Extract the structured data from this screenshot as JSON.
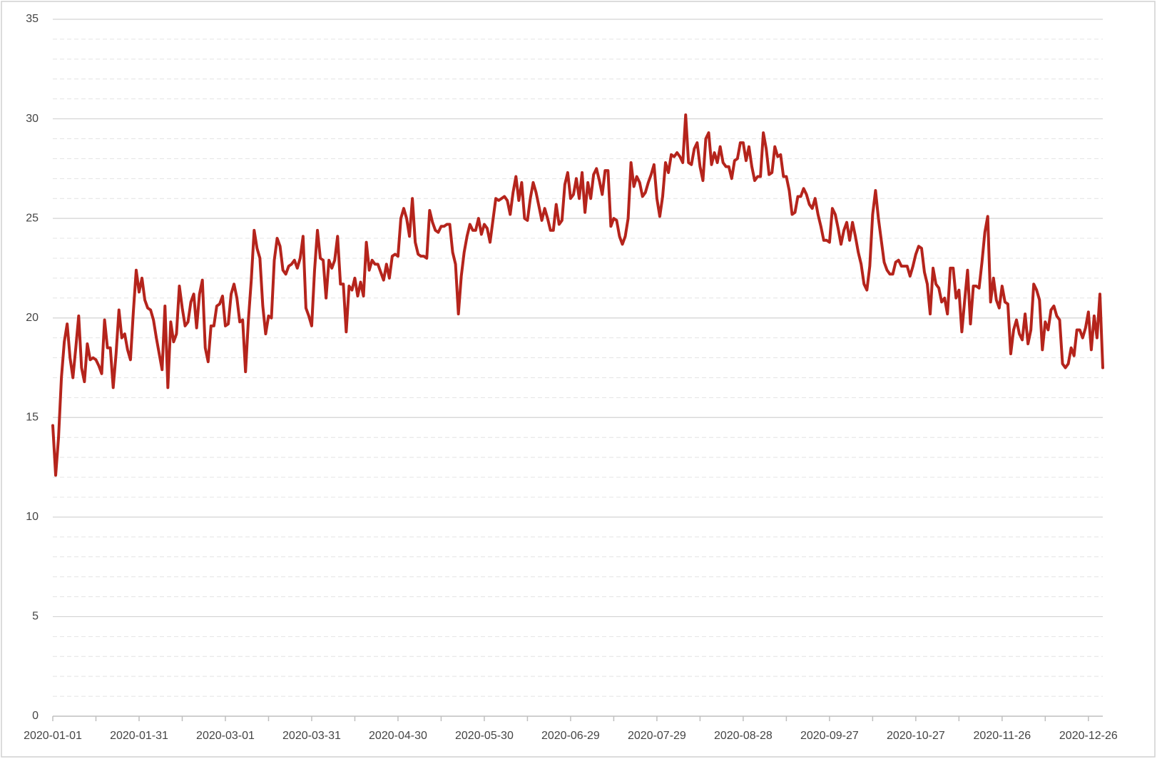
{
  "chart_data": {
    "type": "line",
    "x": [
      "2020-01-01",
      "2020-01-02",
      "2020-01-03",
      "2020-01-04",
      "2020-01-05",
      "2020-01-06",
      "2020-01-07",
      "2020-01-08",
      "2020-01-09",
      "2020-01-10",
      "2020-01-11",
      "2020-01-12",
      "2020-01-13",
      "2020-01-14",
      "2020-01-15",
      "2020-01-16",
      "2020-01-17",
      "2020-01-18",
      "2020-01-19",
      "2020-01-20",
      "2020-01-21",
      "2020-01-22",
      "2020-01-23",
      "2020-01-24",
      "2020-01-25",
      "2020-01-26",
      "2020-01-27",
      "2020-01-28",
      "2020-01-29",
      "2020-01-30",
      "2020-01-31",
      "2020-02-01",
      "2020-02-02",
      "2020-02-03",
      "2020-02-04",
      "2020-02-05",
      "2020-02-06",
      "2020-02-07",
      "2020-02-08",
      "2020-02-09",
      "2020-02-10",
      "2020-02-11",
      "2020-02-12",
      "2020-02-13",
      "2020-02-14",
      "2020-02-15",
      "2020-02-16",
      "2020-02-17",
      "2020-02-18",
      "2020-02-19",
      "2020-02-20",
      "2020-02-21",
      "2020-02-22",
      "2020-02-23",
      "2020-02-24",
      "2020-02-25",
      "2020-02-26",
      "2020-02-27",
      "2020-02-28",
      "2020-02-29",
      "2020-03-01",
      "2020-03-02",
      "2020-03-03",
      "2020-03-04",
      "2020-03-05",
      "2020-03-06",
      "2020-03-07",
      "2020-03-08",
      "2020-03-09",
      "2020-03-10",
      "2020-03-11",
      "2020-03-12",
      "2020-03-13",
      "2020-03-14",
      "2020-03-15",
      "2020-03-16",
      "2020-03-17",
      "2020-03-18",
      "2020-03-19",
      "2020-03-20",
      "2020-03-21",
      "2020-03-22",
      "2020-03-23",
      "2020-03-24",
      "2020-03-25",
      "2020-03-26",
      "2020-03-27",
      "2020-03-28",
      "2020-03-29",
      "2020-03-30",
      "2020-03-31",
      "2020-04-01",
      "2020-04-02",
      "2020-04-03",
      "2020-04-04",
      "2020-04-05",
      "2020-04-06",
      "2020-04-07",
      "2020-04-08",
      "2020-04-09",
      "2020-04-10",
      "2020-04-11",
      "2020-04-12",
      "2020-04-13",
      "2020-04-14",
      "2020-04-15",
      "2020-04-16",
      "2020-04-17",
      "2020-04-18",
      "2020-04-19",
      "2020-04-20",
      "2020-04-21",
      "2020-04-22",
      "2020-04-23",
      "2020-04-24",
      "2020-04-25",
      "2020-04-26",
      "2020-04-27",
      "2020-04-28",
      "2020-04-29",
      "2020-04-30",
      "2020-05-01",
      "2020-05-02",
      "2020-05-03",
      "2020-05-04",
      "2020-05-05",
      "2020-05-06",
      "2020-05-07",
      "2020-05-08",
      "2020-05-09",
      "2020-05-10",
      "2020-05-11",
      "2020-05-12",
      "2020-05-13",
      "2020-05-14",
      "2020-05-15",
      "2020-05-16",
      "2020-05-17",
      "2020-05-18",
      "2020-05-19",
      "2020-05-20",
      "2020-05-21",
      "2020-05-22",
      "2020-05-23",
      "2020-05-24",
      "2020-05-25",
      "2020-05-26",
      "2020-05-27",
      "2020-05-28",
      "2020-05-29",
      "2020-05-30",
      "2020-05-31",
      "2020-06-01",
      "2020-06-02",
      "2020-06-03",
      "2020-06-04",
      "2020-06-05",
      "2020-06-06",
      "2020-06-07",
      "2020-06-08",
      "2020-06-09",
      "2020-06-10",
      "2020-06-11",
      "2020-06-12",
      "2020-06-13",
      "2020-06-14",
      "2020-06-15",
      "2020-06-16",
      "2020-06-17",
      "2020-06-18",
      "2020-06-19",
      "2020-06-20",
      "2020-06-21",
      "2020-06-22",
      "2020-06-23",
      "2020-06-24",
      "2020-06-25",
      "2020-06-26",
      "2020-06-27",
      "2020-06-28",
      "2020-06-29",
      "2020-06-30",
      "2020-07-01",
      "2020-07-02",
      "2020-07-03",
      "2020-07-04",
      "2020-07-05",
      "2020-07-06",
      "2020-07-07",
      "2020-07-08",
      "2020-07-09",
      "2020-07-10",
      "2020-07-11",
      "2020-07-12",
      "2020-07-13",
      "2020-07-14",
      "2020-07-15",
      "2020-07-16",
      "2020-07-17",
      "2020-07-18",
      "2020-07-19",
      "2020-07-20",
      "2020-07-21",
      "2020-07-22",
      "2020-07-23",
      "2020-07-24",
      "2020-07-25",
      "2020-07-26",
      "2020-07-27",
      "2020-07-28",
      "2020-07-29",
      "2020-07-30",
      "2020-07-31",
      "2020-08-01",
      "2020-08-02",
      "2020-08-03",
      "2020-08-04",
      "2020-08-05",
      "2020-08-06",
      "2020-08-07",
      "2020-08-08",
      "2020-08-09",
      "2020-08-10",
      "2020-08-11",
      "2020-08-12",
      "2020-08-13",
      "2020-08-14",
      "2020-08-15",
      "2020-08-16",
      "2020-08-17",
      "2020-08-18",
      "2020-08-19",
      "2020-08-20",
      "2020-08-21",
      "2020-08-22",
      "2020-08-23",
      "2020-08-24",
      "2020-08-25",
      "2020-08-26",
      "2020-08-27",
      "2020-08-28",
      "2020-08-29",
      "2020-08-30",
      "2020-08-31",
      "2020-09-01",
      "2020-09-02",
      "2020-09-03",
      "2020-09-04",
      "2020-09-05",
      "2020-09-06",
      "2020-09-07",
      "2020-09-08",
      "2020-09-09",
      "2020-09-10",
      "2020-09-11",
      "2020-09-12",
      "2020-09-13",
      "2020-09-14",
      "2020-09-15",
      "2020-09-16",
      "2020-09-17",
      "2020-09-18",
      "2020-09-19",
      "2020-09-20",
      "2020-09-21",
      "2020-09-22",
      "2020-09-23",
      "2020-09-24",
      "2020-09-25",
      "2020-09-26",
      "2020-09-27",
      "2020-09-28",
      "2020-09-29",
      "2020-09-30",
      "2020-10-01",
      "2020-10-02",
      "2020-10-03",
      "2020-10-04",
      "2020-10-05",
      "2020-10-06",
      "2020-10-07",
      "2020-10-08",
      "2020-10-09",
      "2020-10-10",
      "2020-10-11",
      "2020-10-12",
      "2020-10-13",
      "2020-10-14",
      "2020-10-15",
      "2020-10-16",
      "2020-10-17",
      "2020-10-18",
      "2020-10-19",
      "2020-10-20",
      "2020-10-21",
      "2020-10-22",
      "2020-10-23",
      "2020-10-24",
      "2020-10-25",
      "2020-10-26",
      "2020-10-27",
      "2020-10-28",
      "2020-10-29",
      "2020-10-30",
      "2020-10-31",
      "2020-11-01",
      "2020-11-02",
      "2020-11-03",
      "2020-11-04",
      "2020-11-05",
      "2020-11-06",
      "2020-11-07",
      "2020-11-08",
      "2020-11-09",
      "2020-11-10",
      "2020-11-11",
      "2020-11-12",
      "2020-11-13",
      "2020-11-14",
      "2020-11-15",
      "2020-11-16",
      "2020-11-17",
      "2020-11-18",
      "2020-11-19",
      "2020-11-20",
      "2020-11-21",
      "2020-11-22",
      "2020-11-23",
      "2020-11-24",
      "2020-11-25",
      "2020-11-26",
      "2020-11-27",
      "2020-11-28",
      "2020-11-29",
      "2020-11-30",
      "2020-12-01",
      "2020-12-02",
      "2020-12-03",
      "2020-12-04",
      "2020-12-05",
      "2020-12-06",
      "2020-12-07",
      "2020-12-08",
      "2020-12-09",
      "2020-12-10",
      "2020-12-11",
      "2020-12-12",
      "2020-12-13",
      "2020-12-14",
      "2020-12-15",
      "2020-12-16",
      "2020-12-17",
      "2020-12-18",
      "2020-12-19",
      "2020-12-20",
      "2020-12-21",
      "2020-12-22",
      "2020-12-23",
      "2020-12-24",
      "2020-12-25",
      "2020-12-26",
      "2020-12-27",
      "2020-12-28",
      "2020-12-29",
      "2020-12-30",
      "2020-12-31"
    ],
    "series": [
      {
        "color": "#b5241c",
        "values": [
          14.6,
          12.1,
          14,
          17,
          18.8,
          19.7,
          18,
          17,
          18.5,
          20.1,
          17.5,
          16.8,
          18.7,
          17.9,
          18,
          17.9,
          17.6,
          17.2,
          19.9,
          18.5,
          18.5,
          16.5,
          18.2,
          20.4,
          19,
          19.2,
          18.4,
          17.9,
          20.3,
          22.4,
          21.3,
          22,
          20.9,
          20.5,
          20.4,
          19.9,
          19,
          18.2,
          17.4,
          20.6,
          16.5,
          19.8,
          18.8,
          19.2,
          21.6,
          20.5,
          19.6,
          19.8,
          20.8,
          21.2,
          19.5,
          21.2,
          21.9,
          18.5,
          17.8,
          19.6,
          19.6,
          20.6,
          20.7,
          21.1,
          19.6,
          19.7,
          21.2,
          21.7,
          21,
          19.8,
          19.9,
          17.3,
          19.9,
          21.9,
          24.4,
          23.5,
          23,
          20.6,
          19.2,
          20.1,
          20,
          22.9,
          24,
          23.6,
          22.4,
          22.2,
          22.6,
          22.7,
          22.9,
          22.5,
          23,
          24.1,
          20.5,
          20.1,
          19.6,
          22.4,
          24.4,
          23,
          22.9,
          21,
          22.9,
          22.5,
          22.9,
          24.1,
          21.7,
          21.7,
          19.3,
          21.6,
          21.4,
          22,
          21.1,
          21.8,
          21.1,
          23.8,
          22.4,
          22.9,
          22.7,
          22.7,
          22.3,
          21.9,
          22.7,
          22,
          23.1,
          23.2,
          23.1,
          25,
          25.5,
          25,
          24.1,
          26,
          23.8,
          23.2,
          23.1,
          23.1,
          23,
          25.4,
          24.8,
          24.4,
          24.3,
          24.6,
          24.6,
          24.7,
          24.7,
          23.3,
          22.7,
          20.2,
          22.1,
          23.3,
          24.1,
          24.7,
          24.4,
          24.4,
          25,
          24.2,
          24.7,
          24.5,
          23.8,
          24.9,
          26,
          25.9,
          26,
          26.1,
          25.9,
          25.2,
          26.3,
          27.1,
          25.9,
          26.8,
          25,
          24.9,
          26,
          26.8,
          26.3,
          25.6,
          24.9,
          25.5,
          25,
          24.4,
          24.4,
          25.7,
          24.7,
          24.9,
          26.7,
          27.3,
          26,
          26.2,
          27,
          26,
          27.3,
          25.3,
          26.8,
          26,
          27.2,
          27.5,
          26.9,
          26.2,
          27.4,
          27.4,
          24.6,
          25,
          24.9,
          24.1,
          23.7,
          24.1,
          25,
          27.8,
          26.6,
          27.1,
          26.8,
          26.1,
          26.3,
          26.8,
          27.2,
          27.7,
          26,
          25.1,
          26.1,
          27.8,
          27.3,
          28.2,
          28.1,
          28.3,
          28.1,
          27.8,
          30.2,
          27.8,
          27.7,
          28.5,
          28.8,
          27.6,
          26.9,
          29,
          29.3,
          27.7,
          28.3,
          27.8,
          28.6,
          27.8,
          27.6,
          27.6,
          27,
          27.9,
          28,
          28.8,
          28.8,
          27.9,
          28.6,
          27.6,
          26.9,
          27.1,
          27.1,
          29.3,
          28.5,
          27.2,
          27.3,
          28.6,
          28.1,
          28.2,
          27.1,
          27.1,
          26.4,
          25.2,
          25.3,
          26.1,
          26.1,
          26.5,
          26.2,
          25.7,
          25.5,
          26,
          25.2,
          24.6,
          23.9,
          23.9,
          23.8,
          25.5,
          25.2,
          24.5,
          23.7,
          24.4,
          24.8,
          23.9,
          24.8,
          24.1,
          23.3,
          22.7,
          21.7,
          21.4,
          22.6,
          25.2,
          26.4,
          25,
          23.9,
          22.8,
          22.4,
          22.2,
          22.2,
          22.8,
          22.9,
          22.6,
          22.6,
          22.6,
          22.1,
          22.6,
          23.2,
          23.6,
          23.5,
          22.3,
          21.7,
          20.2,
          22.5,
          21.7,
          21.5,
          20.8,
          21,
          20.2,
          22.5,
          22.5,
          21,
          21.4,
          19.3,
          20.9,
          22.4,
          19.7,
          21.6,
          21.6,
          21.5,
          22.8,
          24.3,
          25.1,
          20.8,
          22,
          20.9,
          20.5,
          21.6,
          20.8,
          20.7,
          18.2,
          19.4,
          19.9,
          19.2,
          18.9,
          20.2,
          18.7,
          19.4,
          21.7,
          21.4,
          20.9,
          18.4,
          19.8,
          19.4,
          20.4,
          20.6,
          20.1,
          19.9,
          17.7,
          17.5,
          17.7,
          18.5,
          18.1,
          19.4,
          19.4,
          19,
          19.5,
          20.3,
          18.4,
          20.1,
          19,
          21.2,
          17.5
        ]
      }
    ],
    "xlim": [
      "2020-01-01",
      "2020-12-31"
    ],
    "xticks": [
      "2020-01-01",
      "2020-01-31",
      "2020-03-01",
      "2020-03-31",
      "2020-04-30",
      "2020-05-30",
      "2020-06-29",
      "2020-07-29",
      "2020-08-28",
      "2020-09-27",
      "2020-10-27",
      "2020-11-26",
      "2020-12-26"
    ],
    "ylim": [
      0,
      35
    ],
    "yticks": [
      0,
      5,
      10,
      15,
      20,
      25,
      30,
      35
    ],
    "grid": true
  }
}
